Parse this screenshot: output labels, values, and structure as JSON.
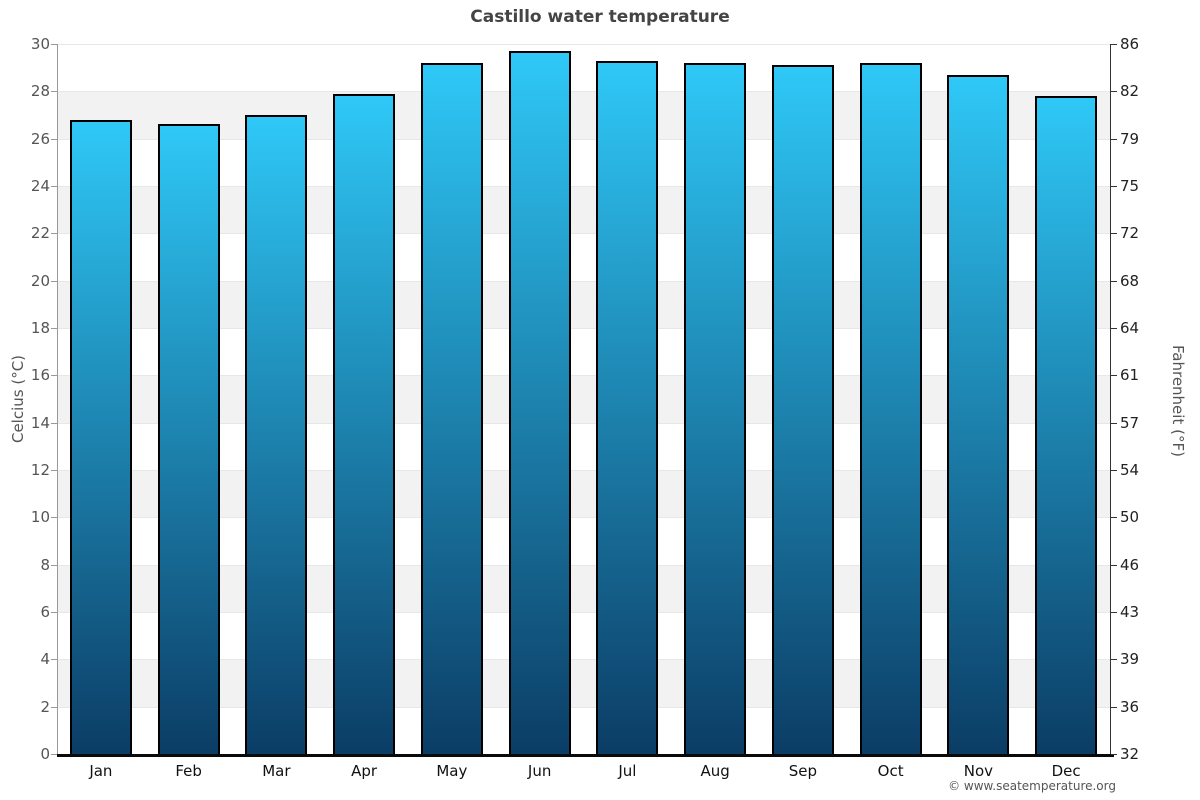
{
  "title": "Castillo water temperature",
  "footer": "© www.seatemperature.org",
  "axes": {
    "left_label": "Celcius (°C)",
    "right_label": "Fahrenheit (°F)"
  },
  "colors": {
    "bar_gradient_top": "#2fc8f7",
    "bar_gradient_bottom": "#0b3d65",
    "bar_border": "#000000",
    "band_gray": "#f2f2f2",
    "title_color": "#444444"
  },
  "chart_data": {
    "type": "bar",
    "title": "Castillo water temperature",
    "categories": [
      "Jan",
      "Feb",
      "Mar",
      "Apr",
      "May",
      "Jun",
      "Jul",
      "Aug",
      "Sep",
      "Oct",
      "Nov",
      "Dec"
    ],
    "values": [
      26.8,
      26.6,
      27.0,
      27.9,
      29.2,
      29.7,
      29.3,
      29.2,
      29.1,
      29.2,
      28.7,
      27.8
    ],
    "xlabel": "",
    "ylabel": "Celcius (°C)",
    "ylabel_right": "Fahrenheit (°F)",
    "ylim": [
      0,
      30
    ],
    "yticks_celsius": [
      30,
      28,
      26,
      24,
      22,
      20,
      18,
      16,
      14,
      12,
      10,
      8,
      6,
      4,
      2,
      0
    ],
    "yticks_fahrenheit": [
      86,
      82,
      79,
      75,
      72,
      68,
      64,
      61,
      57,
      54,
      50,
      46,
      43,
      39,
      36,
      32
    ],
    "grid": "alternating horizontal bands, gray between 28-26, 24-22, 20-18, 16-14, 12-10, 8-6, 4-2",
    "legend": false,
    "footer": "© www.seatemperature.org"
  }
}
